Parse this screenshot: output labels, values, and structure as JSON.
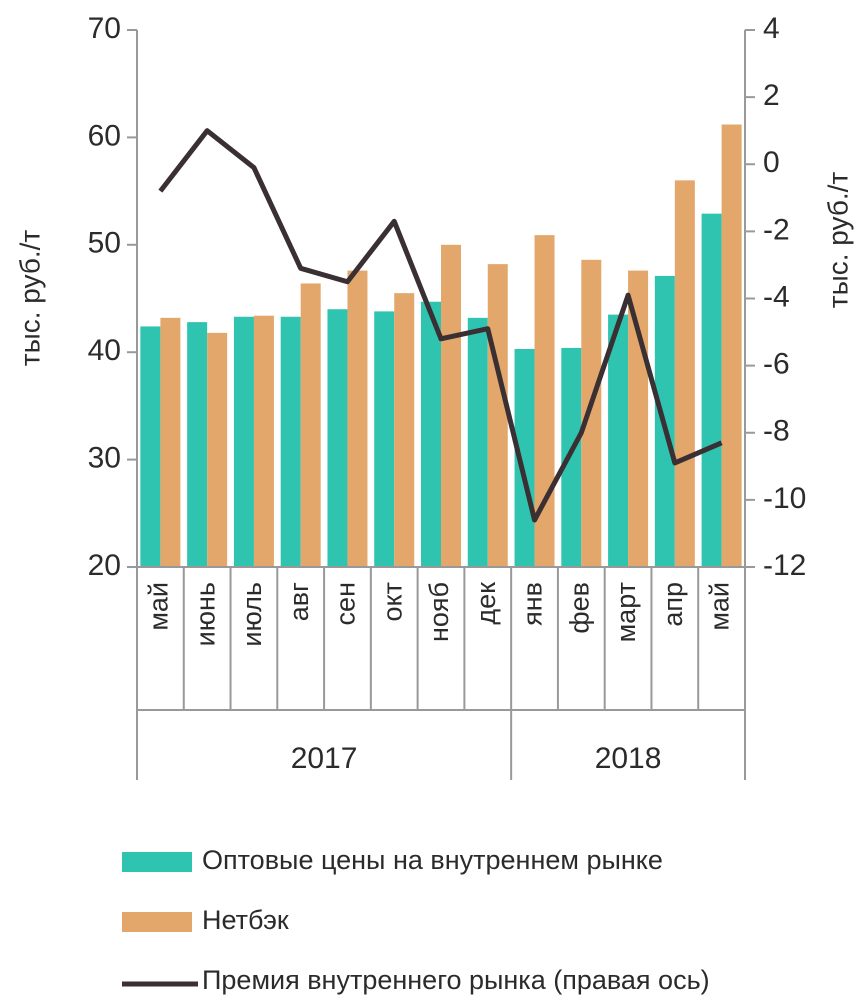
{
  "chart_data": {
    "type": "bar_line",
    "y_label": "тыс. руб./т",
    "y2_label": "тыс. руб./т",
    "categories": [
      "май",
      "июнь",
      "июль",
      "авг",
      "сен",
      "окт",
      "нояб",
      "дек",
      "янв",
      "фев",
      "март",
      "апр",
      "май"
    ],
    "groups": [
      {
        "label": "2017",
        "count": 8
      },
      {
        "label": "2018",
        "count": 5
      }
    ],
    "series": [
      {
        "name": "Оптовые цены на внутреннем рынке",
        "type": "bar",
        "color": "#2ec4b0",
        "values": [
          42.4,
          42.8,
          43.3,
          43.3,
          44.0,
          43.8,
          44.7,
          43.2,
          40.3,
          40.4,
          43.5,
          47.1,
          52.9
        ]
      },
      {
        "name": "Нетбэк",
        "type": "bar",
        "color": "#e3a76c",
        "values": [
          43.2,
          41.8,
          43.4,
          46.4,
          47.6,
          45.5,
          50.0,
          48.2,
          50.9,
          48.6,
          47.6,
          56.0,
          61.2
        ]
      },
      {
        "name": "Премия внутреннего рынка (правая ось)",
        "type": "line",
        "axis": "y2",
        "color": "#3a2f33",
        "values": [
          -0.8,
          1.0,
          -0.1,
          -3.1,
          -3.5,
          -1.7,
          -5.2,
          -4.9,
          -10.6,
          -8.0,
          -3.9,
          -8.9,
          -8.3
        ]
      }
    ],
    "ylim": [
      20,
      70
    ],
    "yticks": [
      20,
      30,
      40,
      50,
      60,
      70
    ],
    "y2lim": [
      -12,
      4
    ],
    "y2ticks": [
      -12,
      -10,
      -8,
      -6,
      -4,
      -2,
      0,
      2,
      4
    ]
  }
}
